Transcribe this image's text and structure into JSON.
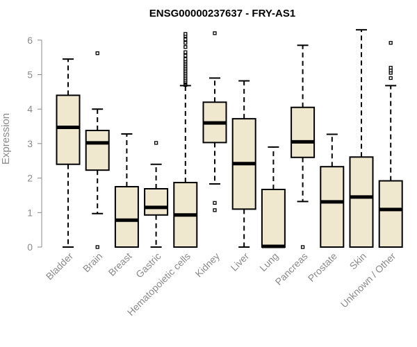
{
  "chart_data": {
    "type": "boxplot",
    "title": "ENSG00000237637 - FRY-AS1",
    "xlabel": "",
    "ylabel": "Expression",
    "ylim": [
      0,
      6.4
    ],
    "yticks": [
      0,
      1,
      2,
      3,
      4,
      5,
      6
    ],
    "box_color": "#efe8cf",
    "categories": [
      "Bladder",
      "Brain",
      "Breast",
      "Gastric",
      "Hematopoietic cells",
      "Kidney",
      "Liver",
      "Lung",
      "Pancreas",
      "Prostate",
      "Skin",
      "Unknown / Other"
    ],
    "boxes": [
      {
        "min": 0,
        "q1": 2.4,
        "median": 3.47,
        "q3": 4.4,
        "max": 5.45,
        "outliers": []
      },
      {
        "min": 0.97,
        "q1": 2.23,
        "median": 3.02,
        "q3": 3.38,
        "max": 4.0,
        "outliers": [
          5.62,
          0
        ]
      },
      {
        "min": 0,
        "q1": 0,
        "median": 0.78,
        "q3": 1.75,
        "max": 3.28,
        "outliers": []
      },
      {
        "min": 0,
        "q1": 0.93,
        "median": 1.15,
        "q3": 1.69,
        "max": 2.4,
        "outliers": [
          3.02
        ]
      },
      {
        "min": 0,
        "q1": 0,
        "median": 0.93,
        "q3": 1.87,
        "max": 4.68,
        "outliers": [
          4.7,
          4.72,
          4.75,
          4.78,
          4.8,
          4.85,
          4.9,
          4.95,
          5.0,
          5.05,
          5.1,
          5.15,
          5.2,
          5.25,
          5.3,
          5.35,
          5.4,
          5.45,
          5.55,
          5.65,
          5.8,
          5.92,
          6.02,
          6.12,
          6.18
        ]
      },
      {
        "min": 1.83,
        "q1": 3.03,
        "median": 3.6,
        "q3": 4.2,
        "max": 4.9,
        "outliers": [
          6.2,
          1.28,
          1.07
        ]
      },
      {
        "min": 0,
        "q1": 1.1,
        "median": 2.42,
        "q3": 3.72,
        "max": 4.82,
        "outliers": []
      },
      {
        "min": 0,
        "q1": 0,
        "median": 0.02,
        "q3": 1.67,
        "max": 2.9,
        "outliers": []
      },
      {
        "min": 1.32,
        "q1": 2.6,
        "median": 3.05,
        "q3": 4.05,
        "max": 5.85,
        "outliers": [
          0
        ]
      },
      {
        "min": 0,
        "q1": 0,
        "median": 1.31,
        "q3": 2.33,
        "max": 3.27,
        "outliers": []
      },
      {
        "min": 0,
        "q1": 0,
        "median": 1.45,
        "q3": 2.61,
        "max": 6.3,
        "outliers": []
      },
      {
        "min": 0,
        "q1": 0,
        "median": 1.09,
        "q3": 1.92,
        "max": 4.68,
        "outliers": [
          4.9,
          5.05,
          5.12,
          5.2,
          5.92
        ]
      }
    ]
  }
}
